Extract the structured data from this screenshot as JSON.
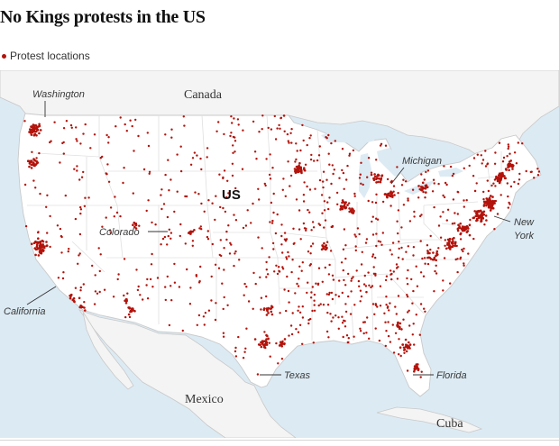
{
  "title": "No Kings protests in the US",
  "legend": {
    "label": "Protest locations"
  },
  "colors": {
    "dot": "#b2130b",
    "ocean": "#dceaf3",
    "land": "#ffffff",
    "border": "#c9c9c9",
    "foreign_land": "#f4f4f4",
    "leader": "#333333"
  },
  "map": {
    "country_labels": {
      "us": "US",
      "canada": "Canada",
      "mexico": "Mexico",
      "cuba": "Cuba"
    },
    "annotations": {
      "washington": "Washington",
      "michigan": "Michigan",
      "new_york_line1": "New",
      "new_york_line2": "York",
      "colorado": "Colorado",
      "california": "California",
      "texas": "Texas",
      "florida": "Florida"
    }
  }
}
